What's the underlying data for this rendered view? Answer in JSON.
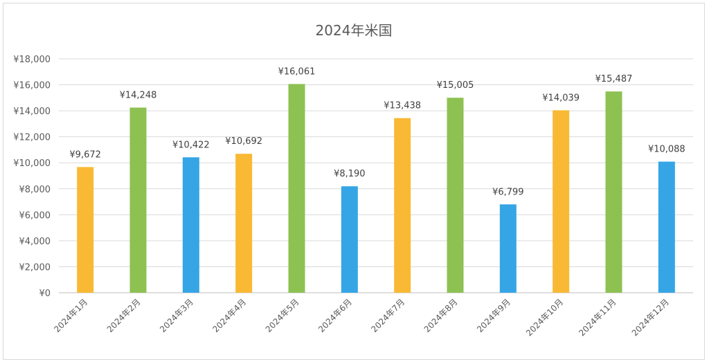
{
  "chart_data": {
    "type": "bar",
    "title": "2024年米国",
    "categories": [
      "2024年1月",
      "2024年2月",
      "2024年3月",
      "2024年4月",
      "2024年5月",
      "2024年6月",
      "2024年7月",
      "2024年8月",
      "2024年9月",
      "2024年10月",
      "2024年11月",
      "2024年12月"
    ],
    "values": [
      9672,
      14248,
      10422,
      10692,
      16061,
      8190,
      13438,
      15005,
      6799,
      14039,
      15487,
      10088
    ],
    "data_labels": [
      "¥9,672",
      "¥14,248",
      "¥10,422",
      "¥10,692",
      "¥16,061",
      "¥8,190",
      "¥13,438",
      "¥15,005",
      "¥6,799",
      "¥14,039",
      "¥15,487",
      "¥10,088"
    ],
    "bar_colors": [
      "#F9B934",
      "#8DC152",
      "#35A5E6",
      "#F9B934",
      "#8DC152",
      "#35A5E6",
      "#F9B934",
      "#8DC152",
      "#35A5E6",
      "#F9B934",
      "#8DC152",
      "#35A5E6"
    ],
    "ylim": [
      0,
      18000
    ],
    "y_ticks": [
      0,
      2000,
      4000,
      6000,
      8000,
      10000,
      12000,
      14000,
      16000,
      18000
    ],
    "y_tick_labels": [
      "¥0",
      "¥2,000",
      "¥4,000",
      "¥6,000",
      "¥8,000",
      "¥10,000",
      "¥12,000",
      "¥14,000",
      "¥16,000",
      "¥18,000"
    ],
    "grid": true,
    "legend": false
  }
}
